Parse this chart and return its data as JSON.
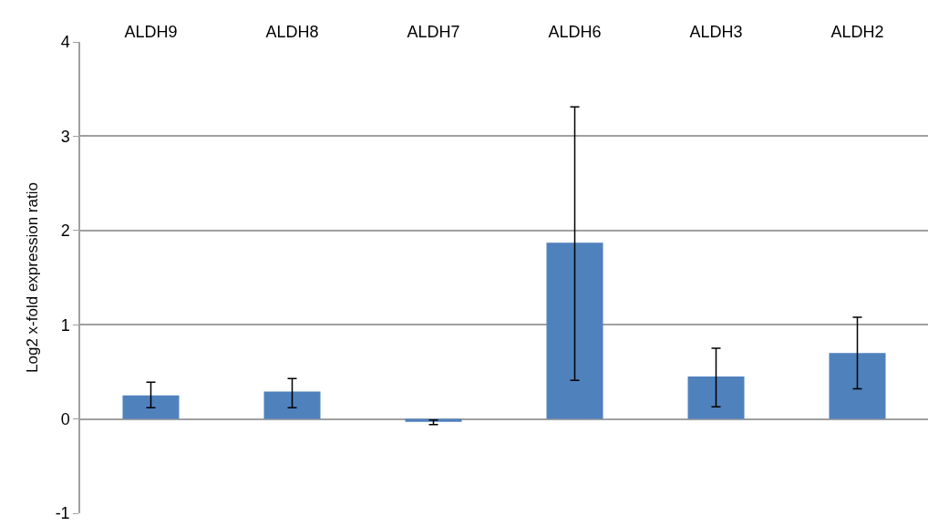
{
  "chart_data": {
    "type": "bar",
    "ylabel": "Log2 x-fold expression ratio",
    "categories": [
      "ALDH9",
      "ALDH8",
      "ALDH7",
      "ALDH6",
      "ALDH3",
      "ALDH2"
    ],
    "values": [
      0.25,
      0.29,
      -0.03,
      1.87,
      0.45,
      0.7
    ],
    "errors": [
      [
        0.12,
        0.39
      ],
      [
        0.12,
        0.43
      ],
      [
        -0.06,
        -0.01
      ],
      [
        0.41,
        3.31
      ],
      [
        0.13,
        0.75
      ],
      [
        0.32,
        1.08
      ]
    ],
    "color": "#4f81bd",
    "ylim": [
      -1,
      4
    ],
    "yticks": [
      -1,
      0,
      1,
      2,
      3,
      4
    ],
    "grid": "y"
  }
}
